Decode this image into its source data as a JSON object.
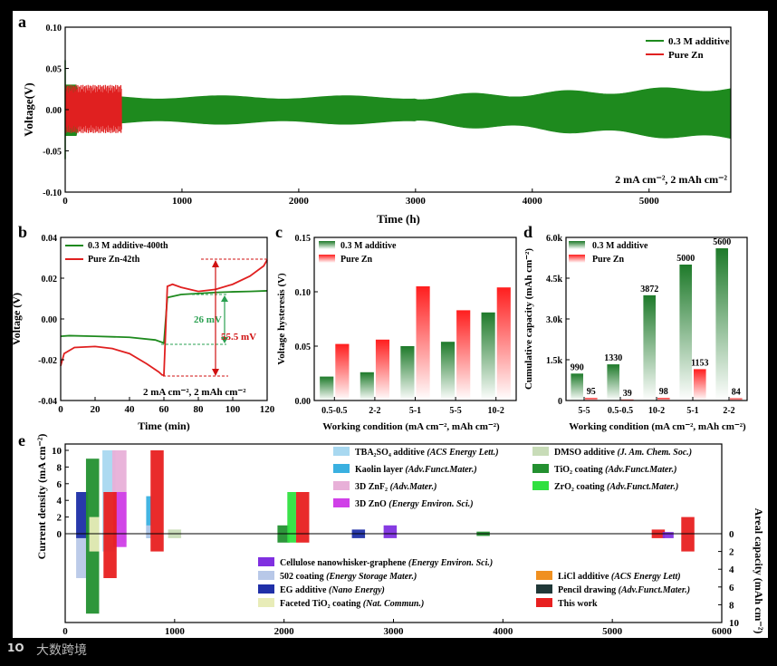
{
  "colors": {
    "additive": "#1e8a1e",
    "pure": "#e02020",
    "annot_green": "#2aa050",
    "annot_red": "#d01010"
  },
  "watermark": "大数跨境",
  "watermark_logo": "1O",
  "chart_data": [
    {
      "panel": "a",
      "type": "line",
      "title": "",
      "xlabel": "Time (h)",
      "ylabel": "Voltage(V)",
      "xlim": [
        0,
        5700
      ],
      "ylim": [
        -0.1,
        0.1
      ],
      "xticks": [
        0,
        1000,
        2000,
        3000,
        4000,
        5000
      ],
      "yticks": [
        "-0.10",
        "-0.05",
        "0.00",
        "0.05",
        "0.10"
      ],
      "series": [
        {
          "name": "0.3 M additive",
          "x_end": 5700,
          "amplitude_start": 0.03,
          "amplitude_mid": 0.015,
          "amplitude_end": 0.03
        },
        {
          "name": "Pure Zn",
          "x_end": 480,
          "amplitude": 0.03
        }
      ],
      "annotation": "2 mA cm⁻², 2 mAh cm⁻²"
    },
    {
      "panel": "b",
      "type": "line",
      "xlabel": "Time (min)",
      "ylabel": "Voltage (V)",
      "xlim": [
        0,
        120
      ],
      "ylim": [
        -0.04,
        0.04
      ],
      "xticks": [
        0,
        20,
        40,
        60,
        80,
        100,
        120
      ],
      "yticks": [
        "-0.04",
        "-0.02",
        "0.00",
        "0.02",
        "0.04"
      ],
      "series": [
        {
          "name": "0.3 M additive-400th",
          "x": [
            0,
            5,
            20,
            40,
            55,
            59,
            60,
            62,
            70,
            80,
            90,
            100,
            110,
            120
          ],
          "y": [
            -0.0085,
            -0.0082,
            -0.0085,
            -0.009,
            -0.0103,
            -0.0115,
            -0.0118,
            0.0105,
            0.012,
            0.0125,
            0.013,
            0.0133,
            0.0135,
            0.0138
          ]
        },
        {
          "name": "Pure Zn-42th",
          "x": [
            0,
            2,
            8,
            20,
            30,
            40,
            50,
            57,
            59,
            60,
            62,
            65,
            70,
            80,
            90,
            100,
            110,
            118,
            120
          ],
          "y": [
            -0.023,
            -0.017,
            -0.014,
            -0.0135,
            -0.0145,
            -0.017,
            -0.022,
            -0.026,
            -0.0275,
            -0.0275,
            0.016,
            0.017,
            0.0155,
            0.0135,
            0.0145,
            0.017,
            0.021,
            0.026,
            0.029
          ]
        }
      ],
      "hysteresis_labels": [
        "26 mV",
        "55.5 mV"
      ],
      "annotation": "2 mA cm⁻², 2 mAh cm⁻²"
    },
    {
      "panel": "c",
      "type": "bar",
      "xlabel": "Working condition (mA cm⁻², mAh cm⁻²)",
      "ylabel": "Voltage hysteresis (V)",
      "ylim": [
        0,
        0.15
      ],
      "yticks": [
        "0.00",
        "0.05",
        "0.10",
        "0.15"
      ],
      "categories": [
        "0.5-0.5",
        "2-2",
        "5-1",
        "5-5",
        "10-2"
      ],
      "series": [
        {
          "name": "0.3 M additive",
          "values": [
            0.022,
            0.026,
            0.05,
            0.054,
            0.081
          ]
        },
        {
          "name": "Pure Zn",
          "values": [
            0.052,
            0.056,
            0.105,
            0.083,
            0.104
          ]
        }
      ]
    },
    {
      "panel": "d",
      "type": "bar",
      "xlabel": "Working condition (mA cm⁻², mAh cm⁻²)",
      "ylabel": "Cumulative capacity (mAh cm⁻²)",
      "ylim": [
        0,
        6000
      ],
      "yticks": [
        "0",
        "1.5k",
        "3.0k",
        "4.5k",
        "6.0k"
      ],
      "categories": [
        "5-5",
        "0.5-0.5",
        "10-2",
        "5-1",
        "2-2"
      ],
      "series": [
        {
          "name": "0.3 M additive",
          "values": [
            990,
            1330,
            3872,
            5000,
            5600
          ],
          "labels": [
            "990",
            "1330",
            "3872",
            "5000",
            "5600"
          ]
        },
        {
          "name": "Pure Zn",
          "values": [
            95,
            39,
            98,
            1153,
            84
          ],
          "labels": [
            "95",
            "39",
            "98",
            "1153",
            "84"
          ]
        }
      ]
    },
    {
      "panel": "e",
      "type": "bar",
      "xlabel": "Time (h)",
      "ylabel": "Current density (mA cm⁻²)",
      "ylabel2": "Areal capacity (mAh cm⁻²)",
      "xlim": [
        0,
        6000
      ],
      "xticks": [
        0,
        1000,
        2000,
        3000,
        4000,
        5000,
        6000
      ],
      "yticks_top": [
        "0",
        "2",
        "4",
        "6",
        "8",
        "10"
      ],
      "yticks_bottom": [
        "0",
        "2",
        "4",
        "6",
        "8",
        "10"
      ],
      "legend": [
        {
          "label": "TBA₂SO₄ additive",
          "journal": "(ACS Energy Lett.)",
          "color": "#a8d8f0"
        },
        {
          "label": "Kaolin layer",
          "journal": "(Adv.Funct.Mater.)",
          "color": "#3ab0e0"
        },
        {
          "label": "3D ZnF₂",
          "journal": "(Adv.Mater.)",
          "color": "#e8b0d8"
        },
        {
          "label": "3D ZnO",
          "journal": "(Energy Environ. Sci.)",
          "color": "#d040e8"
        },
        {
          "label": "DMSO additive",
          "journal": "(J. Am. Chem. Soc.)",
          "color": "#c8dcb8"
        },
        {
          "label": "TiO₂ coating",
          "journal": "(Adv.Funct.Mater.)",
          "color": "#239030"
        },
        {
          "label": "ZrO₂ coating",
          "journal": "(Adv.Funct.Mater.)",
          "color": "#30e040"
        },
        {
          "label": "Cellulose nanowhisker-graphene",
          "journal": "(Energy Environ. Sci.)",
          "color": "#8030e0"
        },
        {
          "label": "502 coating",
          "journal": "(Energy Storage Mater.)",
          "color": "#b8c8e8"
        },
        {
          "label": "EG additive",
          "journal": "(Nano Energy)",
          "color": "#2030a8"
        },
        {
          "label": "Faceted TiO₂ coating",
          "journal": "(Nat. Commun.)",
          "color": "#e8ecb8"
        },
        {
          "label": "LiCl additive",
          "journal": "(ACS Energy Lett)",
          "color": "#f09020"
        },
        {
          "label": "Pencil drawing",
          "journal": "(Adv.Funct.Mater.)",
          "color": "#203838"
        },
        {
          "label": "This work",
          "journal": "",
          "color": "#e82020"
        }
      ],
      "bars": [
        {
          "name": "502 coating",
          "x0": 100,
          "x1": 200,
          "cur": 5,
          "cap": 5
        },
        {
          "name": "EG additive",
          "x0": 100,
          "x1": 210,
          "cur": 5,
          "cap": 0.5
        },
        {
          "name": "TiO2 coating",
          "x0": 190,
          "x1": 310,
          "cur": 9,
          "cap": 9
        },
        {
          "name": "Faceted TiO2 coating",
          "x0": 220,
          "x1": 310,
          "cur": 2,
          "cap": 2
        },
        {
          "name": "TBA2SO4 additive",
          "x0": 340,
          "x1": 460,
          "cur": 10,
          "cap": 2
        },
        {
          "name": "3D ZnF2",
          "x0": 430,
          "x1": 560,
          "cur": 10,
          "cap": 1
        },
        {
          "name": "Faceted TiO2 coating",
          "x0": 420,
          "x1": 520,
          "cur": 1,
          "cap": 1
        },
        {
          "name": "3D ZnO",
          "x0": 440,
          "x1": 560,
          "cur": 5,
          "cap": 1.5
        },
        {
          "name": "This work",
          "x0": 350,
          "x1": 470,
          "cur": 5,
          "cap": 5
        },
        {
          "name": "Kaolin layer",
          "x0": 740,
          "x1": 790,
          "cur": 4.5,
          "cap": 0.5
        },
        {
          "name": "502 coating",
          "x0": 740,
          "x1": 790,
          "cur": 1,
          "cap": 0.5
        },
        {
          "name": "This work",
          "x0": 780,
          "x1": 900,
          "cur": 10,
          "cap": 2
        },
        {
          "name": "DMSO additive",
          "x0": 940,
          "x1": 1060,
          "cur": 0.5,
          "cap": 0.5
        },
        {
          "name": "TiO2 coating",
          "x0": 1940,
          "x1": 2050,
          "cur": 1,
          "cap": 1
        },
        {
          "name": "ZrO2 coating",
          "x0": 2030,
          "x1": 2110,
          "cur": 5,
          "cap": 1
        },
        {
          "name": "This work",
          "x0": 2110,
          "x1": 2230,
          "cur": 5,
          "cap": 1
        },
        {
          "name": "EG additive",
          "x0": 2620,
          "x1": 2740,
          "cur": 0.5,
          "cap": 0.5
        },
        {
          "name": "Cellulose nanowhisker-graphene",
          "x0": 2910,
          "x1": 3030,
          "cur": 1,
          "cap": 0.5
        },
        {
          "name": "TiO2 coating",
          "x0": 3760,
          "x1": 3880,
          "cur": 0.25,
          "cap": 0.25
        },
        {
          "name": "This work",
          "x0": 5360,
          "x1": 5480,
          "cur": 0.5,
          "cap": 0.5
        },
        {
          "name": "Cellulose nanowhisker-graphene",
          "x0": 5460,
          "x1": 5560,
          "cur": 0.2,
          "cap": 0.5
        },
        {
          "name": "This work",
          "x0": 5630,
          "x1": 5750,
          "cur": 2,
          "cap": 2
        }
      ]
    }
  ],
  "panel_letters": [
    "a",
    "b",
    "c",
    "d",
    "e"
  ]
}
